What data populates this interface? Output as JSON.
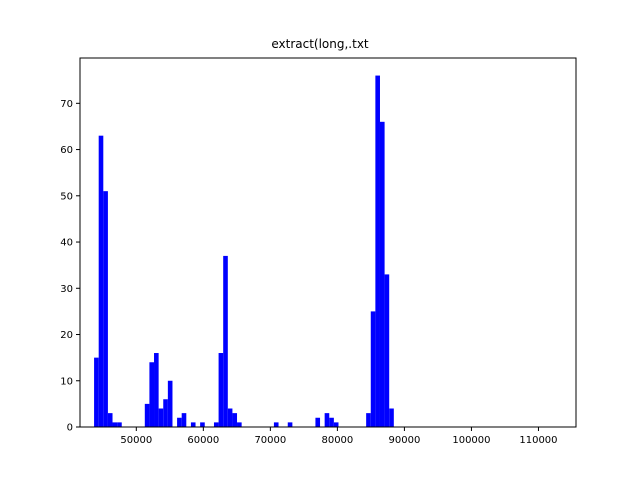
{
  "chart_data": {
    "type": "bar",
    "subtype": "histogram",
    "title": "extract(long,.txt",
    "xlabel": "",
    "ylabel": "",
    "xlim": [
      41600,
      115600
    ],
    "ylim": [
      0,
      79.8
    ],
    "bar_color": "#0000ff",
    "grid": false,
    "legend": "none",
    "bin_width": 688,
    "bins_start": 43700,
    "counts": [
      15,
      63,
      51,
      3,
      1,
      1,
      0,
      0,
      0,
      0,
      0,
      5,
      14,
      16,
      4,
      6,
      10,
      0,
      2,
      3,
      0,
      1,
      0,
      1,
      0,
      0,
      1,
      16,
      37,
      4,
      3,
      1,
      0,
      0,
      0,
      0,
      0,
      0,
      0,
      1,
      0,
      0,
      1,
      0,
      0,
      0,
      0,
      0,
      2,
      0,
      3,
      2,
      1,
      0,
      0,
      0,
      0,
      0,
      0,
      3,
      25,
      76,
      66,
      33,
      4,
      0,
      0,
      0,
      0,
      0,
      0,
      0,
      0,
      0,
      0,
      0,
      0,
      0,
      0,
      0,
      0,
      0,
      0,
      0,
      0,
      0,
      0,
      0,
      0,
      0,
      0,
      0,
      0,
      0,
      0,
      0,
      0,
      0,
      0,
      0,
      0,
      0,
      0,
      0,
      0,
      0,
      0,
      0,
      0,
      0,
      0,
      0,
      0,
      0,
      0,
      0,
      0,
      0,
      0,
      0,
      0,
      0,
      0,
      0,
      0,
      0,
      0,
      0,
      0,
      0,
      0,
      0,
      0,
      0,
      0,
      0,
      0,
      0,
      0,
      0,
      0,
      0,
      0,
      0,
      0,
      0,
      0,
      0,
      0
    ],
    "x_ticks": [
      50000,
      60000,
      70000,
      80000,
      90000,
      100000,
      110000
    ],
    "x_tick_labels": [
      "50000",
      "60000",
      "70000",
      "80000",
      "90000",
      "100000",
      "110000"
    ],
    "y_ticks": [
      0,
      10,
      20,
      30,
      40,
      50,
      60,
      70
    ],
    "y_tick_labels": [
      "0",
      "10",
      "20",
      "30",
      "40",
      "50",
      "60",
      "70"
    ]
  }
}
